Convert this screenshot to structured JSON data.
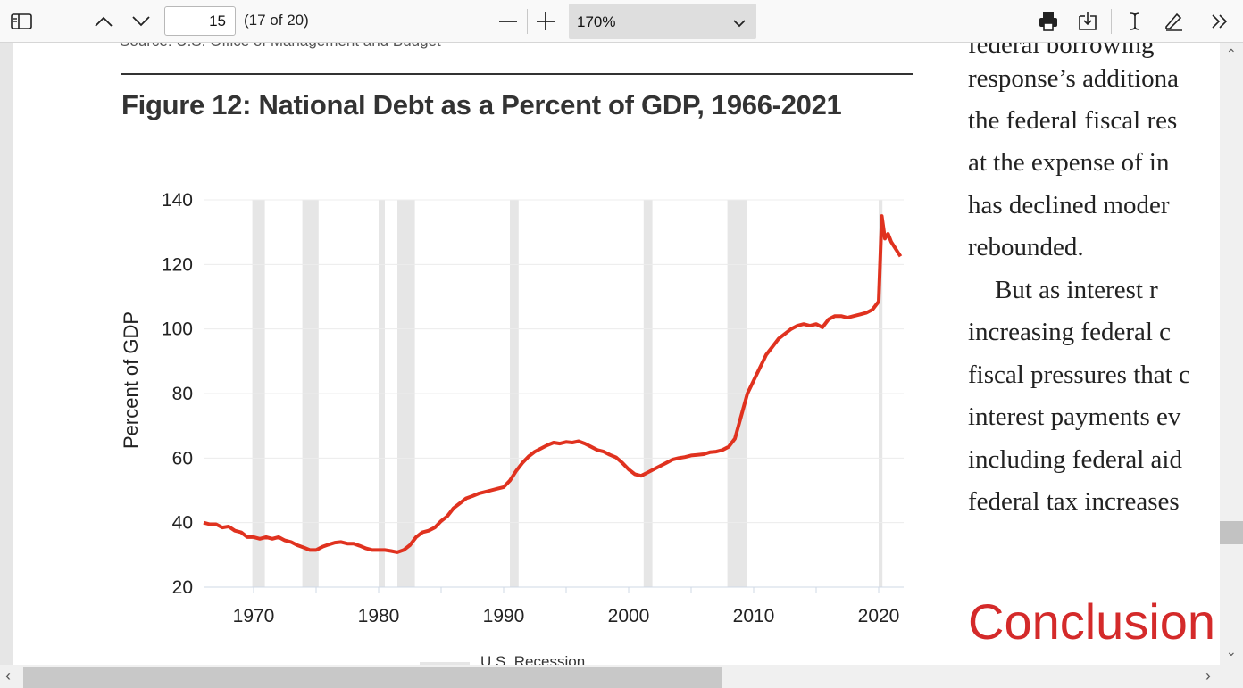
{
  "toolbar": {
    "page_number": "15",
    "page_count": "(17 of 20)",
    "zoom": "170%",
    "icons": [
      "sidebar-icon",
      "chevron-up-icon",
      "chevron-down-icon",
      "minus-icon",
      "plus-icon",
      "print-icon",
      "save-icon",
      "text-cursor-icon",
      "draw-icon",
      "more-tools-icon"
    ]
  },
  "document": {
    "source_line": "Source: U.S. Office of Management and Budget",
    "figure_title": "Figure 12: National Debt as a Percent of GDP, 1966-2021",
    "legend_label": "U.S. Recession",
    "conclusion_heading": "Conclusion",
    "body_lines": [
      "federal borrowing",
      "response’s additiona",
      "the federal fiscal res",
      "at the expense of in",
      "has declined moder",
      "rebounded.",
      "But as interest r",
      "increasing federal c",
      "fiscal pressures that c",
      "interest payments ev",
      "including federal aid",
      "federal tax increases"
    ]
  },
  "chart_data": {
    "type": "line",
    "title": "Figure 12: National Debt as a Percent of GDP, 1966-2021",
    "xlabel": "",
    "ylabel": "Percent of GDP",
    "xlim": [
      1966,
      2022
    ],
    "ylim": [
      20,
      140
    ],
    "yticks": [
      20,
      40,
      60,
      80,
      100,
      120,
      140
    ],
    "xticks": [
      1970,
      1980,
      1990,
      2000,
      2010,
      2020
    ],
    "grid": true,
    "line_color": "#e0321f",
    "recession_color": "#e6e6e6",
    "recessions": [
      [
        1969.9,
        1970.9
      ],
      [
        1973.9,
        1975.2
      ],
      [
        1980.0,
        1980.5
      ],
      [
        1981.5,
        1982.9
      ],
      [
        1990.5,
        1991.2
      ],
      [
        2001.2,
        2001.9
      ],
      [
        2007.9,
        2009.5
      ],
      [
        2020.0,
        2020.3
      ]
    ],
    "x": [
      1966,
      1966.5,
      1967,
      1967.5,
      1968,
      1968.5,
      1969,
      1969.5,
      1970,
      1970.5,
      1971,
      1971.5,
      1972,
      1972.5,
      1973,
      1973.5,
      1974,
      1974.5,
      1975,
      1975.5,
      1976,
      1976.5,
      1977,
      1977.5,
      1978,
      1978.5,
      1979,
      1979.5,
      1980,
      1980.5,
      1981,
      1981.5,
      1982,
      1982.5,
      1983,
      1983.5,
      1984,
      1984.5,
      1985,
      1985.5,
      1986,
      1986.5,
      1987,
      1987.5,
      1988,
      1988.5,
      1989,
      1989.5,
      1990,
      1990.5,
      1991,
      1991.5,
      1992,
      1992.5,
      1993,
      1993.5,
      1994,
      1994.5,
      1995,
      1995.5,
      1996,
      1996.5,
      1997,
      1997.5,
      1998,
      1998.5,
      1999,
      1999.5,
      2000,
      2000.5,
      2001,
      2001.5,
      2002,
      2002.5,
      2003,
      2003.5,
      2004,
      2004.5,
      2005,
      2005.5,
      2006,
      2006.5,
      2007,
      2007.5,
      2008,
      2008.5,
      2009,
      2009.5,
      2010,
      2010.5,
      2011,
      2011.5,
      2012,
      2012.5,
      2013,
      2013.5,
      2014,
      2014.5,
      2015,
      2015.5,
      2016,
      2016.5,
      2017,
      2017.5,
      2018,
      2018.5,
      2019,
      2019.5,
      2020,
      2020.25,
      2020.5,
      2020.75,
      2021,
      2021.5,
      2021.75
    ],
    "values": [
      40,
      39.5,
      39.5,
      38.5,
      38.8,
      37.5,
      37,
      35.5,
      35.5,
      35,
      35.5,
      35,
      35.5,
      34.5,
      34,
      33,
      32.3,
      31.5,
      31.5,
      32.5,
      33.2,
      33.8,
      34,
      33.5,
      33.5,
      32.8,
      32,
      31.5,
      31.5,
      31.5,
      31.2,
      30.8,
      31.5,
      33,
      35.5,
      37,
      37.5,
      38.5,
      40.5,
      42,
      44.5,
      46,
      47.5,
      48.2,
      49,
      49.5,
      50,
      50.5,
      51,
      53,
      56,
      58.5,
      60.5,
      62,
      63,
      64,
      64.8,
      64.5,
      65,
      64.8,
      65.2,
      64.5,
      63.5,
      62.5,
      62,
      61,
      60.2,
      58.5,
      56.5,
      55,
      54.5,
      55.5,
      56.5,
      57.5,
      58.5,
      59.5,
      60,
      60.3,
      60.8,
      61,
      61.2,
      61.8,
      62,
      62.5,
      63.5,
      66,
      73,
      80,
      84,
      88,
      92,
      94.5,
      97,
      98.5,
      100,
      101,
      101.5,
      101,
      101.5,
      100.5,
      103,
      104,
      104,
      103.5,
      104,
      104.5,
      105,
      106,
      108.5,
      135,
      128,
      129.5,
      127,
      124,
      122.5
    ]
  }
}
